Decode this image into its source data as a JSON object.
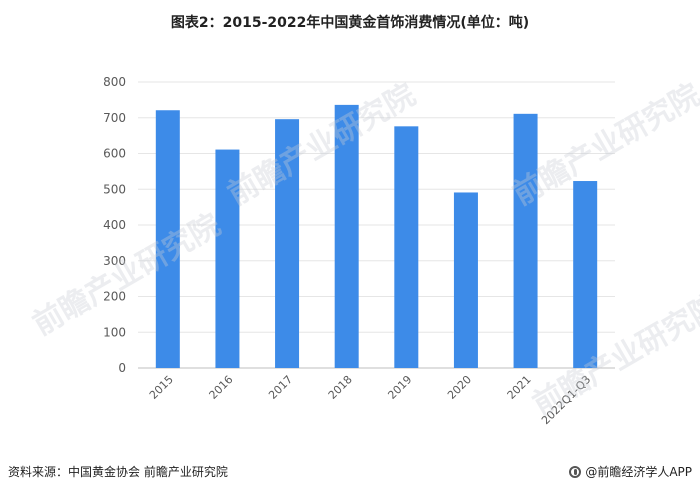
{
  "title": "图表2：2015-2022年中国黄金首饰消费情况(单位：吨)",
  "footer": {
    "source": "资料来源：中国黄金协会 前瞻产业研究院",
    "brand": "@前瞻经济学人APP"
  },
  "watermark": "前瞻产业研究院",
  "colors": {
    "bar": "#3D8BE8",
    "grid": "#E6E6E6",
    "axis": "#BFBFBF"
  },
  "chart_data": {
    "type": "bar",
    "title": "图表2：2015-2022年中国黄金首饰消费情况(单位：吨)",
    "categories": [
      "2015",
      "2016",
      "2017",
      "2018",
      "2019",
      "2020",
      "2021",
      "2022Q1-Q3"
    ],
    "values": [
      721,
      611,
      696,
      736,
      676,
      491,
      711,
      523
    ],
    "ylim": [
      0,
      800
    ],
    "yticks": [
      0,
      100,
      200,
      300,
      400,
      500,
      600,
      700,
      800
    ],
    "grid": true,
    "xlabel": "",
    "ylabel": ""
  }
}
